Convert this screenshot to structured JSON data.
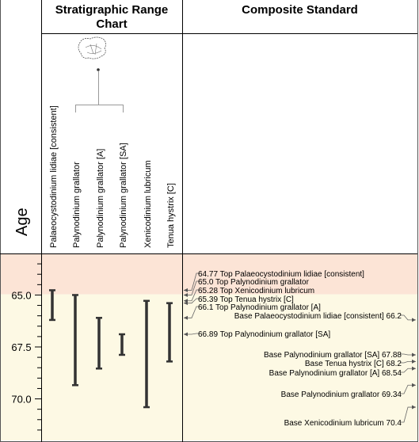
{
  "chart_data": {
    "type": "range",
    "panels": {
      "range_chart_title": "Stratigraphic Range Chart",
      "composite_title": "Composite Standard",
      "age_label": "Age"
    },
    "y_axis": {
      "label": "Age",
      "range": [
        63.0,
        72.0
      ],
      "ticks": [
        65.0,
        67.5,
        70.0
      ],
      "tick_labels": [
        "65.0",
        "67.5",
        "70.0"
      ],
      "minor_step": 0.5
    },
    "zones": [
      {
        "from": 63.0,
        "to": 64.97,
        "color": "#fce4d6"
      },
      {
        "from": 64.97,
        "to": 72.0,
        "color": "#fdf9e4"
      }
    ],
    "taxa": [
      {
        "name": "Palaeocystodinium lidiae [consistent]",
        "top": 64.77,
        "base": 66.2
      },
      {
        "name": "Palynodinium grallator",
        "top": 65.0,
        "base": 69.34
      },
      {
        "name": "Palynodinium grallator [A]",
        "top": 66.1,
        "base": 68.54
      },
      {
        "name": "Palynodinium grallator [SA]",
        "top": 66.89,
        "base": 67.88
      },
      {
        "name": "Xenicodinium lubricum",
        "top": 65.28,
        "base": 70.4
      },
      {
        "name": "Tenua hystrix [C]",
        "top": 65.39,
        "base": 68.2
      }
    ],
    "tops": [
      {
        "label": "64.77 Top Palaeocystodinium lidiae [consistent]",
        "value": 64.77
      },
      {
        "label": "65.0  Top Palynodinium grallator",
        "value": 65.0
      },
      {
        "label": "65.28 Top Xenicodinium lubricum",
        "value": 65.28
      },
      {
        "label": "65.39 Top Tenua hystrix [C]",
        "value": 65.39
      },
      {
        "label": "66.1  Top Palynodinium grallator [A]",
        "value": 66.1
      },
      {
        "label": "66.89 Top Palynodinium grallator [SA]",
        "value": 66.89
      }
    ],
    "bases": [
      {
        "label": "Base Palaeocystodinium lidiae [consistent]  66.2",
        "value": 66.2
      },
      {
        "label": "Base Palynodinium grallator [SA] 67.88",
        "value": 67.88
      },
      {
        "label": "Base Tenua hystrix [C]  68.2",
        "value": 68.2
      },
      {
        "label": "Base Palynodinium grallator [A] 68.54",
        "value": 68.54
      },
      {
        "label": "Base Palynodinium grallator 69.34",
        "value": 69.34
      },
      {
        "label": "Base Xenicodinium lubricum  70.4",
        "value": 70.4
      }
    ],
    "grid": false,
    "colors": {
      "border": "#000000",
      "range_bar": "#333333",
      "connector": "#999999",
      "zone_upper": "#fce4d6",
      "zone_lower": "#fdf9e4"
    }
  }
}
